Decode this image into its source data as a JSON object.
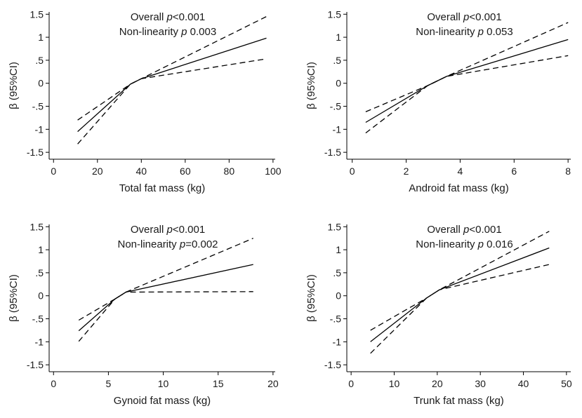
{
  "chart_data": [
    {
      "type": "line",
      "xlabel": "Total fat mass (kg)",
      "ylabel": "β (95%CI)",
      "xlim": [
        -2,
        101
      ],
      "ylim": [
        -1.65,
        1.55
      ],
      "xticks": [
        0,
        20,
        40,
        60,
        80,
        100
      ],
      "xtick_labels": [
        "0",
        "20",
        "40",
        "60",
        "80",
        "100"
      ],
      "yticks": [
        -1.5,
        -1,
        -0.5,
        0,
        0.5,
        1,
        1.5
      ],
      "ytick_labels": [
        "-1.5",
        "-1",
        "-.5",
        "0",
        ".5",
        "1",
        "1.5"
      ],
      "annotations": [
        {
          "prefix": "Overall ",
          "p": "p",
          "value": "<0.001"
        },
        {
          "prefix": "Non-linearity ",
          "p": "p",
          "value": " 0.003"
        }
      ],
      "series": [
        {
          "name": "upper 95% CI",
          "style": "dashed",
          "points": [
            [
              11,
              -0.8
            ],
            [
              35,
              -0.02
            ],
            [
              40,
              0.1
            ],
            [
              97,
              1.45
            ]
          ]
        },
        {
          "name": "estimate",
          "style": "solid",
          "points": [
            [
              11,
              -1.05
            ],
            [
              35,
              -0.02
            ],
            [
              40,
              0.1
            ],
            [
              97,
              0.98
            ]
          ]
        },
        {
          "name": "lower 95% CI",
          "style": "dashed",
          "points": [
            [
              11,
              -1.32
            ],
            [
              35,
              -0.02
            ],
            [
              40,
              0.1
            ],
            [
              97,
              0.53
            ]
          ]
        }
      ]
    },
    {
      "type": "line",
      "xlabel": "Android fat mass (kg)",
      "ylabel": "β (95%CI)",
      "xlim": [
        -0.2,
        8.1
      ],
      "ylim": [
        -1.65,
        1.55
      ],
      "xticks": [
        0,
        2,
        4,
        6,
        8
      ],
      "xtick_labels": [
        "0",
        "2",
        "4",
        "6",
        "8"
      ],
      "yticks": [
        -1.5,
        -1,
        -0.5,
        0,
        0.5,
        1,
        1.5
      ],
      "ytick_labels": [
        "-1.5",
        "-1",
        "-.5",
        "0",
        ".5",
        "1",
        "1.5"
      ],
      "annotations": [
        {
          "prefix": "Overall ",
          "p": "p",
          "value": "<0.001"
        },
        {
          "prefix": "Non-linearity ",
          "p": "p",
          "value": " 0.053"
        }
      ],
      "series": [
        {
          "name": "upper 95% CI",
          "style": "dashed",
          "points": [
            [
              0.5,
              -0.62
            ],
            [
              2.8,
              -0.05
            ],
            [
              3.5,
              0.15
            ],
            [
              8,
              1.32
            ]
          ]
        },
        {
          "name": "estimate",
          "style": "solid",
          "points": [
            [
              0.5,
              -0.85
            ],
            [
              2.8,
              -0.05
            ],
            [
              3.5,
              0.15
            ],
            [
              8,
              0.95
            ]
          ]
        },
        {
          "name": "lower 95% CI",
          "style": "dashed",
          "points": [
            [
              0.5,
              -1.08
            ],
            [
              2.8,
              -0.05
            ],
            [
              3.5,
              0.15
            ],
            [
              8,
              0.6
            ]
          ]
        }
      ]
    },
    {
      "type": "line",
      "xlabel": "Gynoid fat mass (kg)",
      "ylabel": "β (95%CI)",
      "xlim": [
        -0.4,
        20.2
      ],
      "ylim": [
        -1.65,
        1.55
      ],
      "xticks": [
        0,
        5,
        10,
        15,
        20
      ],
      "xtick_labels": [
        "0",
        "5",
        "10",
        "15",
        "20"
      ],
      "yticks": [
        -1.5,
        -1,
        -0.5,
        0,
        0.5,
        1,
        1.5
      ],
      "ytick_labels": [
        "-1.5",
        "-1",
        "-.5",
        "0",
        ".5",
        "1",
        "1.5"
      ],
      "annotations": [
        {
          "prefix": "Overall ",
          "p": "p",
          "value": "<0.001"
        },
        {
          "prefix": "Non-linearity ",
          "p": "p",
          "value": "=0.002"
        }
      ],
      "series": [
        {
          "name": "upper 95% CI",
          "style": "dashed",
          "points": [
            [
              2.3,
              -0.53
            ],
            [
              5.6,
              -0.07
            ],
            [
              6.6,
              0.08
            ],
            [
              18.2,
              1.25
            ]
          ]
        },
        {
          "name": "estimate",
          "style": "solid",
          "points": [
            [
              2.3,
              -0.76
            ],
            [
              5.6,
              -0.07
            ],
            [
              6.6,
              0.08
            ],
            [
              18.2,
              0.68
            ]
          ]
        },
        {
          "name": "lower 95% CI",
          "style": "dashed",
          "points": [
            [
              2.3,
              -0.99
            ],
            [
              5.6,
              -0.07
            ],
            [
              6.6,
              0.08
            ],
            [
              18.2,
              0.09
            ]
          ]
        }
      ]
    },
    {
      "type": "line",
      "xlabel": "Trunk fat mass (kg)",
      "ylabel": "β (95%CI)",
      "xlim": [
        -1,
        51
      ],
      "ylim": [
        -1.65,
        1.55
      ],
      "xticks": [
        0,
        10,
        20,
        30,
        40,
        50
      ],
      "xtick_labels": [
        "0",
        "10",
        "20",
        "30",
        "40",
        "50"
      ],
      "yticks": [
        -1.5,
        -1,
        -0.5,
        0,
        0.5,
        1,
        1.5
      ],
      "ytick_labels": [
        "-1.5",
        "-1",
        "-.5",
        "0",
        ".5",
        "1",
        "1.5"
      ],
      "annotations": [
        {
          "prefix": "Overall ",
          "p": "p",
          "value": "<0.001"
        },
        {
          "prefix": "Non-linearity ",
          "p": "p",
          "value": " 0.016"
        }
      ],
      "series": [
        {
          "name": "upper 95% CI",
          "style": "dashed",
          "points": [
            [
              4.5,
              -0.75
            ],
            [
              17.5,
              -0.05
            ],
            [
              20.5,
              0.13
            ],
            [
              46,
              1.4
            ]
          ]
        },
        {
          "name": "estimate",
          "style": "solid",
          "points": [
            [
              4.5,
              -1.0
            ],
            [
              17.5,
              -0.05
            ],
            [
              20.5,
              0.13
            ],
            [
              46,
              1.04
            ]
          ]
        },
        {
          "name": "lower 95% CI",
          "style": "dashed",
          "points": [
            [
              4.5,
              -1.25
            ],
            [
              17.5,
              -0.05
            ],
            [
              20.5,
              0.13
            ],
            [
              46,
              0.68
            ]
          ]
        }
      ]
    }
  ]
}
